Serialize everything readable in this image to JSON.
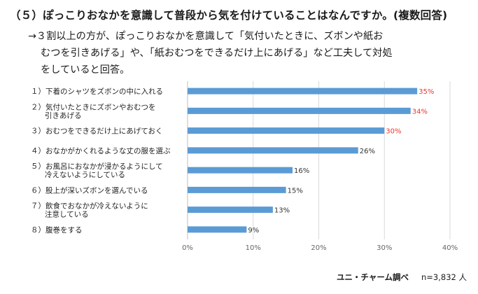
{
  "question": "（５）ぽっこりおなかを意識して普段から気を付けていることはなんですか。(複数回答)",
  "summary": [
    "→３割以上の方が、ぽっこりおなかを意識して「気付いたときに、ズボンや紙お",
    "むつを引きあげる」や、「紙おむつをできるだけ上にあげる」など工夫して対処",
    "をしていると回答。"
  ],
  "source": {
    "label": "ユニ・チャーム調べ",
    "n": "n=3,832 人"
  },
  "colors": {
    "bar": "#5b9bd5",
    "highlight": "#e8392e",
    "normal": "#333333",
    "grid": "#d9d9d9",
    "axis": "#bfbfbf"
  },
  "chart_data": {
    "type": "bar",
    "orientation": "horizontal",
    "categories": [
      [
        "１）下着のシャツをズボンの中に入れる"
      ],
      [
        "２）気付いたときにズボンやおむつを",
        "引きあげる"
      ],
      [
        "３）おむつをできるだけ上にあげておく"
      ],
      [
        "４）おなかがかくれるような丈の服を選ぶ"
      ],
      [
        "５）お風呂におなかが浸かるようにして",
        "冷えないようにしている"
      ],
      [
        "６）股上が深いズボンを選んでいる"
      ],
      [
        "７）飲食でおなかが冷えないように",
        "注意している"
      ],
      [
        "８）腹巻をする"
      ]
    ],
    "values": [
      35,
      34,
      30,
      26,
      16,
      15,
      13,
      9
    ],
    "value_labels": [
      "35%",
      "34%",
      "30%",
      "26%",
      "16%",
      "15%",
      "13%",
      "9%"
    ],
    "highlighted": [
      true,
      true,
      true,
      false,
      false,
      false,
      false,
      false
    ],
    "xlim": [
      0,
      40
    ],
    "xticks": [
      "0%",
      "10%",
      "20%",
      "30%",
      "40%"
    ],
    "grid": true
  }
}
